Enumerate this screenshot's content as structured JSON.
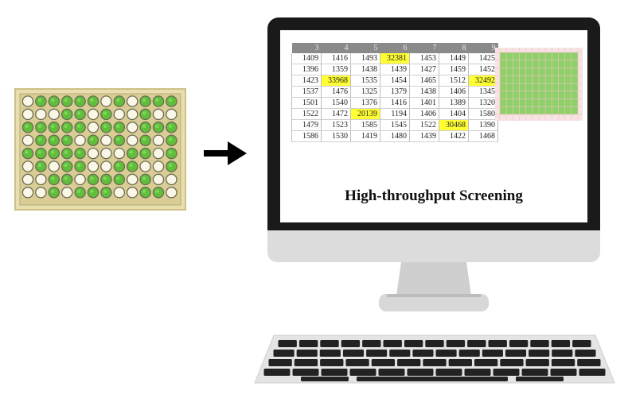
{
  "caption": "High-throughput Screening",
  "table": {
    "columns": [
      "3",
      "4",
      "5",
      "6",
      "7",
      "8",
      "9"
    ],
    "rows": [
      [
        "1409",
        "1416",
        "1493",
        "32381",
        "1453",
        "1449",
        "1425"
      ],
      [
        "1396",
        "1359",
        "1438",
        "1439",
        "1427",
        "1459",
        "1452"
      ],
      [
        "1423",
        "33968",
        "1535",
        "1454",
        "1465",
        "1512",
        "32492"
      ],
      [
        "1537",
        "1476",
        "1325",
        "1379",
        "1438",
        "1406",
        "1345"
      ],
      [
        "1501",
        "1540",
        "1376",
        "1416",
        "1401",
        "1389",
        "1320"
      ],
      [
        "1522",
        "1472",
        "20139",
        "1194",
        "1406",
        "1404",
        "1580"
      ],
      [
        "1479",
        "1523",
        "1585",
        "1545",
        "1522",
        "30468",
        "1390"
      ],
      [
        "1586",
        "1530",
        "1419",
        "1480",
        "1439",
        "1422",
        "1468"
      ]
    ],
    "hits": [
      [
        0,
        3
      ],
      [
        2,
        1
      ],
      [
        2,
        6
      ],
      [
        5,
        2
      ],
      [
        6,
        5
      ]
    ],
    "hit_color": "#ffff33"
  },
  "plate": {
    "rows": 8,
    "cols": 12,
    "wells": [
      "ogggggogoggg",
      "oooggogoogoo",
      "gggggoggoggg",
      "ogggogogogog",
      "gggggoooggog",
      "ogoggooggoog",
      "ooggogggogoo",
      "oogogggooggo"
    ],
    "colors": {
      "frame": "#e8dfb0",
      "well_green": "#5fbf3a",
      "well_empty": "#fbf7e6",
      "well_ring": "#6b6b55"
    }
  },
  "colors": {
    "monitor_bezel": "#1a1a1a",
    "monitor_chin": "#dcdcdc",
    "stand": "#d2d2d2",
    "heatmap_green": "#8fd06a",
    "heatmap_pink": "#f2c4c4"
  }
}
